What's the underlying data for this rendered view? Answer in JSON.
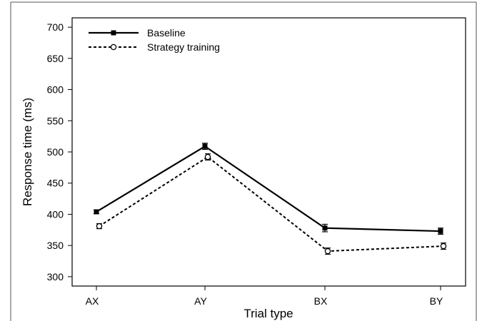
{
  "chart_data": {
    "type": "line",
    "xlabel": "Trial type",
    "ylabel": "Response time (ms)",
    "categories": [
      "AX",
      "AY",
      "BX",
      "BY"
    ],
    "ylim": [
      285,
      715
    ],
    "yticks": [
      300,
      350,
      400,
      450,
      500,
      550,
      600,
      650,
      700
    ],
    "grid": false,
    "legend_position": "top-left",
    "series": [
      {
        "name": "Baseline",
        "values": [
          404,
          509,
          378,
          373
        ],
        "errors": [
          3,
          5,
          6,
          5
        ],
        "marker": "filled-square",
        "line": "solid",
        "color": "#000000"
      },
      {
        "name": "Strategy training",
        "values": [
          381,
          492,
          341,
          349
        ],
        "errors": [
          4,
          5,
          5,
          5
        ],
        "marker": "open-circle",
        "line": "dotted",
        "color": "#000000"
      }
    ]
  }
}
